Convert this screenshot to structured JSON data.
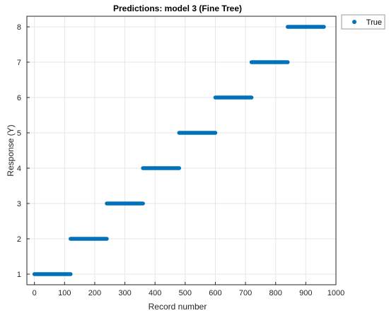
{
  "chart_data": {
    "type": "scatter",
    "title": "Predictions: model 3 (Fine Tree)",
    "xlabel": "Record number",
    "ylabel": "Response (Y)",
    "xlim": [
      -25,
      1000
    ],
    "ylim": [
      0.7,
      8.3
    ],
    "xticks": [
      0,
      100,
      200,
      300,
      400,
      500,
      600,
      700,
      800,
      900,
      1000
    ],
    "yticks": [
      1,
      2,
      3,
      4,
      5,
      6,
      7,
      8
    ],
    "grid": true,
    "legend_position": "outside top-right",
    "series": [
      {
        "name": "True",
        "color": "#0072BD",
        "segments": [
          {
            "x_start": 0,
            "x_end": 120,
            "y": 1
          },
          {
            "x_start": 120,
            "x_end": 240,
            "y": 2
          },
          {
            "x_start": 240,
            "x_end": 360,
            "y": 3
          },
          {
            "x_start": 360,
            "x_end": 480,
            "y": 4
          },
          {
            "x_start": 480,
            "x_end": 600,
            "y": 5
          },
          {
            "x_start": 600,
            "x_end": 720,
            "y": 6
          },
          {
            "x_start": 720,
            "x_end": 840,
            "y": 7
          },
          {
            "x_start": 840,
            "x_end": 960,
            "y": 8
          }
        ]
      }
    ]
  },
  "colors": {
    "grid": "#e6e6e6",
    "axis": "#262626",
    "marker": "#0072BD"
  }
}
